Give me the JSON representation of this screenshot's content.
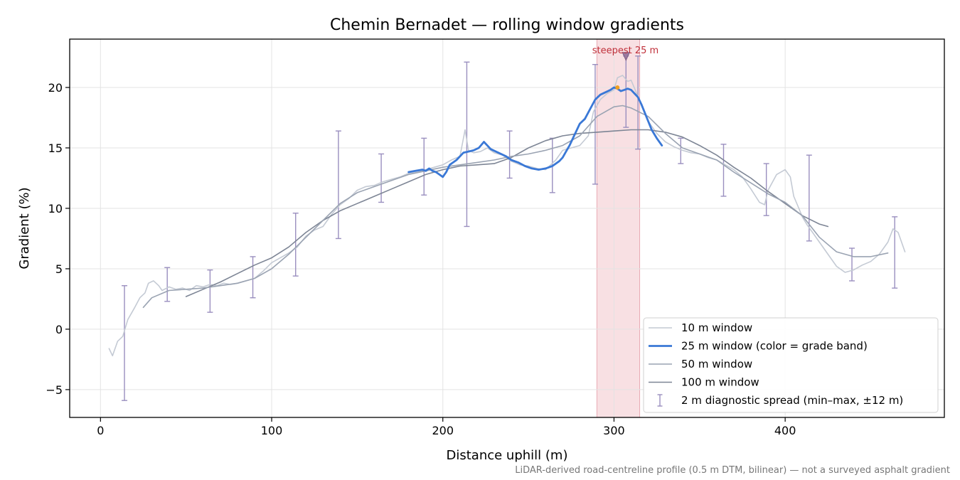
{
  "chart_data": {
    "type": "line",
    "title": "Chemin Bernadet — rolling window gradients",
    "xlabel": "Distance uphill (m)",
    "ylabel": "Gradient (%)",
    "xlim": [
      -18,
      493
    ],
    "ylim": [
      -7.3,
      24.0
    ],
    "xticks": [
      0,
      100,
      200,
      300,
      400
    ],
    "yticks": [
      -5,
      0,
      5,
      10,
      15,
      20
    ],
    "grid": true,
    "legend_position": "lower-right",
    "highlight": {
      "x0": 290,
      "x1": 315,
      "color": "#f5d5da",
      "label": "steepest 25 m",
      "label_color": "#c0303a",
      "marker_x": 307,
      "marker_y": 22.6,
      "peak_x": 302,
      "peak_y": 20.0
    },
    "footnote": "LiDAR-derived road-centreline profile (0.5 m DTM, bilinear) — not a surveyed asphalt gradient",
    "colors": {
      "w10": "#c4cad4",
      "w25": "#3a78d6",
      "w50": "#9aa3b2",
      "w100": "#7d8595",
      "err": "#9a8fbf"
    },
    "series": [
      {
        "name": "10 m window",
        "key": "w10",
        "width": 1.6,
        "x": [
          5,
          7,
          10,
          13,
          16,
          20,
          23,
          26,
          28,
          31,
          34,
          36,
          40,
          44,
          48,
          52,
          56,
          60,
          64,
          68,
          72,
          76,
          80,
          85,
          90,
          95,
          100,
          105,
          110,
          115,
          120,
          125,
          130,
          135,
          140,
          145,
          150,
          155,
          160,
          165,
          170,
          175,
          180,
          185,
          190,
          195,
          200,
          205,
          210,
          213,
          215,
          218,
          222,
          226,
          230,
          235,
          240,
          245,
          250,
          255,
          260,
          263,
          266,
          270,
          275,
          280,
          285,
          288,
          292,
          296,
          300,
          302,
          305,
          308,
          310,
          313,
          316,
          320,
          325,
          330,
          335,
          340,
          345,
          350,
          355,
          360,
          365,
          370,
          375,
          380,
          385,
          388,
          390,
          395,
          400,
          403,
          405,
          408,
          410,
          413,
          416,
          420,
          425,
          430,
          435,
          440,
          445,
          450,
          455,
          460,
          463,
          466,
          470
        ],
        "y": [
          -1.6,
          -2.2,
          -1.0,
          -0.6,
          0.8,
          1.8,
          2.6,
          3.0,
          3.8,
          4.0,
          3.6,
          3.2,
          3.5,
          3.3,
          3.4,
          3.2,
          3.6,
          3.5,
          3.7,
          3.6,
          3.8,
          3.7,
          3.8,
          4.0,
          4.2,
          4.8,
          5.5,
          5.9,
          6.3,
          6.8,
          7.7,
          8.2,
          8.5,
          9.5,
          10.3,
          10.8,
          11.5,
          11.8,
          11.9,
          12.2,
          12.4,
          12.6,
          12.9,
          13.0,
          13.2,
          13.4,
          13.6,
          14.0,
          14.3,
          16.5,
          14.8,
          14.6,
          14.7,
          15.0,
          14.6,
          14.4,
          13.9,
          13.6,
          13.5,
          13.3,
          13.2,
          13.6,
          14.0,
          14.8,
          15.0,
          15.2,
          16.0,
          18.0,
          19.0,
          19.5,
          19.8,
          20.8,
          21.0,
          20.5,
          20.6,
          19.6,
          18.6,
          17.2,
          16.2,
          15.5,
          15.1,
          14.8,
          14.6,
          14.5,
          14.2,
          14.0,
          13.6,
          13.2,
          12.6,
          11.6,
          10.5,
          10.3,
          11.5,
          12.8,
          13.2,
          12.6,
          11.0,
          10.0,
          9.3,
          8.6,
          8.0,
          7.2,
          6.2,
          5.2,
          4.7,
          4.9,
          5.3,
          5.6,
          6.2,
          7.2,
          8.3,
          8.0,
          6.4
        ]
      },
      {
        "name": "25 m window (color = grade band)",
        "key": "w25",
        "width": 2.8,
        "x": [
          180,
          184,
          188,
          190,
          192,
          194,
          196,
          198,
          200,
          202,
          204,
          208,
          212,
          215,
          218,
          221,
          224,
          226,
          228,
          231,
          234,
          237,
          240,
          244,
          248,
          252,
          256,
          260,
          264,
          268,
          270,
          272,
          274,
          276,
          278,
          280,
          283,
          286,
          289,
          292,
          295,
          298,
          300,
          302,
          304,
          306,
          308,
          310,
          312,
          314,
          316,
          318,
          320,
          322,
          325,
          328
        ],
        "y": [
          13.0,
          13.1,
          13.2,
          13.1,
          13.3,
          13.1,
          13.0,
          12.8,
          12.6,
          13.0,
          13.6,
          14.0,
          14.6,
          14.7,
          14.8,
          15.0,
          15.5,
          15.2,
          14.9,
          14.7,
          14.5,
          14.3,
          14.0,
          13.8,
          13.5,
          13.3,
          13.2,
          13.3,
          13.5,
          13.9,
          14.2,
          14.7,
          15.2,
          15.8,
          16.4,
          17.0,
          17.4,
          18.2,
          19.0,
          19.4,
          19.6,
          19.8,
          20.0,
          19.9,
          19.7,
          19.8,
          19.9,
          19.8,
          19.5,
          19.2,
          18.6,
          17.9,
          17.2,
          16.5,
          15.8,
          15.2
        ]
      },
      {
        "name": "50 m window",
        "key": "w50",
        "width": 1.6,
        "x": [
          25,
          30,
          40,
          50,
          60,
          70,
          80,
          90,
          100,
          110,
          120,
          130,
          140,
          150,
          160,
          170,
          180,
          190,
          200,
          210,
          220,
          230,
          240,
          250,
          260,
          270,
          280,
          290,
          300,
          305,
          310,
          320,
          330,
          340,
          350,
          360,
          370,
          380,
          390,
          400,
          410,
          420,
          430,
          440,
          450,
          460
        ],
        "y": [
          1.8,
          2.6,
          3.2,
          3.3,
          3.4,
          3.6,
          3.8,
          4.2,
          5.0,
          6.2,
          7.6,
          9.0,
          10.4,
          11.3,
          11.8,
          12.3,
          12.8,
          13.1,
          13.4,
          13.6,
          13.8,
          14.0,
          14.3,
          14.5,
          14.8,
          15.2,
          16.0,
          17.6,
          18.4,
          18.5,
          18.3,
          17.6,
          16.2,
          15.0,
          14.5,
          14.0,
          13.0,
          12.1,
          11.2,
          10.5,
          9.4,
          7.6,
          6.4,
          6.0,
          6.0,
          6.3
        ]
      },
      {
        "name": "100 m window",
        "key": "w100",
        "width": 1.6,
        "x": [
          50,
          60,
          70,
          80,
          90,
          100,
          110,
          120,
          130,
          140,
          150,
          160,
          170,
          180,
          190,
          200,
          210,
          220,
          230,
          240,
          250,
          260,
          270,
          280,
          290,
          300,
          310,
          320,
          330,
          340,
          350,
          360,
          370,
          380,
          390,
          400,
          410,
          420,
          425
        ],
        "y": [
          2.7,
          3.3,
          3.9,
          4.6,
          5.3,
          5.9,
          6.8,
          8.0,
          9.0,
          9.8,
          10.4,
          11.0,
          11.6,
          12.2,
          12.8,
          13.2,
          13.5,
          13.6,
          13.7,
          14.2,
          15.0,
          15.6,
          16.0,
          16.2,
          16.3,
          16.4,
          16.5,
          16.5,
          16.3,
          15.9,
          15.2,
          14.4,
          13.4,
          12.5,
          11.4,
          10.4,
          9.4,
          8.7,
          8.5
        ]
      }
    ],
    "error_bars": {
      "name": "2 m diagnostic spread (min–max, ±12 m)",
      "points": [
        [
          14,
          3.6,
          -5.9
        ],
        [
          39,
          5.1,
          2.3
        ],
        [
          64,
          4.9,
          1.4
        ],
        [
          89,
          6.0,
          2.6
        ],
        [
          114,
          9.6,
          4.4
        ],
        [
          139,
          16.4,
          7.5
        ],
        [
          164,
          14.5,
          10.5
        ],
        [
          189,
          15.8,
          11.1
        ],
        [
          214,
          22.1,
          8.5
        ],
        [
          239,
          16.4,
          12.5
        ],
        [
          264,
          15.8,
          11.3
        ],
        [
          289,
          21.9,
          12.0
        ],
        [
          307,
          22.6,
          16.7
        ],
        [
          314,
          22.6,
          14.9
        ],
        [
          339,
          15.8,
          13.7
        ],
        [
          364,
          15.3,
          11.0
        ],
        [
          389,
          13.7,
          9.4
        ],
        [
          414,
          14.4,
          7.3
        ],
        [
          439,
          6.7,
          4.0
        ],
        [
          464,
          9.3,
          3.4
        ]
      ]
    },
    "legend": [
      "10 m window",
      "25 m window (color = grade band)",
      "50 m window",
      "100 m window",
      "2 m diagnostic spread (min–max, ±12 m)"
    ]
  }
}
